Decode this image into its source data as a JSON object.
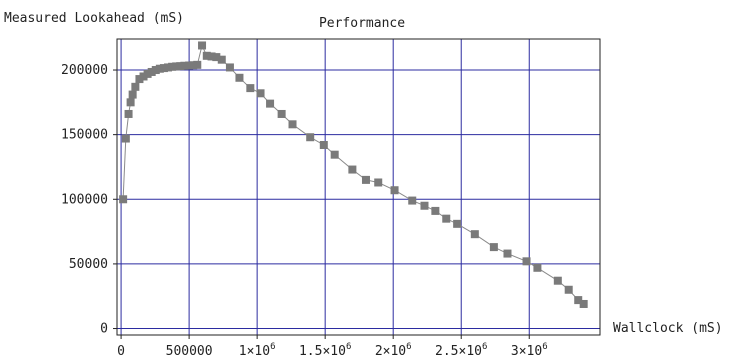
{
  "chart_data": {
    "type": "scatter",
    "title": "Performance",
    "ylabel": "Measured Lookahead (mS)",
    "xlabel": "Wallclock (mS)",
    "xlim": [
      -30000,
      3520000
    ],
    "ylim": [
      -5000,
      224000
    ],
    "grid": true,
    "line_connected": true,
    "colors": {
      "marker": "#7a7a7a",
      "grid": "#2b2ba0",
      "frame": "#222222",
      "line": "#8a8a8a"
    },
    "x_ticks": [
      {
        "value": 0,
        "label": "0"
      },
      {
        "value": 500000,
        "label": "500000"
      },
      {
        "value": 1000000,
        "mant": "1×10",
        "exp": "6"
      },
      {
        "value": 1500000,
        "mant": "1.5×10",
        "exp": "6"
      },
      {
        "value": 2000000,
        "mant": "2×10",
        "exp": "6"
      },
      {
        "value": 2500000,
        "mant": "2.5×10",
        "exp": "6"
      },
      {
        "value": 3000000,
        "mant": "3×10",
        "exp": "6"
      }
    ],
    "y_ticks": [
      {
        "value": 0,
        "label": "0"
      },
      {
        "value": 50000,
        "label": "50000"
      },
      {
        "value": 100000,
        "label": "100000"
      },
      {
        "value": 150000,
        "label": "150000"
      },
      {
        "value": 200000,
        "label": "200000"
      }
    ],
    "points": [
      [
        15000,
        100000
      ],
      [
        35000,
        147000
      ],
      [
        55000,
        166000
      ],
      [
        70000,
        175000
      ],
      [
        85000,
        181000
      ],
      [
        105000,
        187000
      ],
      [
        135000,
        193000
      ],
      [
        165000,
        195000
      ],
      [
        195000,
        197000
      ],
      [
        225000,
        198500
      ],
      [
        255000,
        200000
      ],
      [
        285000,
        201000
      ],
      [
        315000,
        201500
      ],
      [
        345000,
        202000
      ],
      [
        375000,
        202500
      ],
      [
        405000,
        202800
      ],
      [
        435000,
        203000
      ],
      [
        465000,
        203300
      ],
      [
        500000,
        203500
      ],
      [
        530000,
        203700
      ],
      [
        560000,
        204000
      ],
      [
        595000,
        219000
      ],
      [
        630000,
        211000
      ],
      [
        665000,
        210500
      ],
      [
        700000,
        210000
      ],
      [
        740000,
        208000
      ],
      [
        800000,
        202000
      ],
      [
        870000,
        194000
      ],
      [
        950000,
        186000
      ],
      [
        1025000,
        182000
      ],
      [
        1095000,
        174000
      ],
      [
        1180000,
        166000
      ],
      [
        1260000,
        158000
      ],
      [
        1390000,
        148000
      ],
      [
        1490000,
        142000
      ],
      [
        1570000,
        134500
      ],
      [
        1700000,
        123000
      ],
      [
        1800000,
        115000
      ],
      [
        1890000,
        113000
      ],
      [
        2010000,
        107000
      ],
      [
        2140000,
        99000
      ],
      [
        2230000,
        95000
      ],
      [
        2310000,
        91000
      ],
      [
        2390000,
        85000
      ],
      [
        2470000,
        81000
      ],
      [
        2600000,
        73000
      ],
      [
        2740000,
        63000
      ],
      [
        2840000,
        58000
      ],
      [
        2980000,
        52000
      ],
      [
        3060000,
        47000
      ],
      [
        3210000,
        37000
      ],
      [
        3290000,
        30000
      ],
      [
        3360000,
        22000
      ],
      [
        3400000,
        19000
      ]
    ]
  }
}
